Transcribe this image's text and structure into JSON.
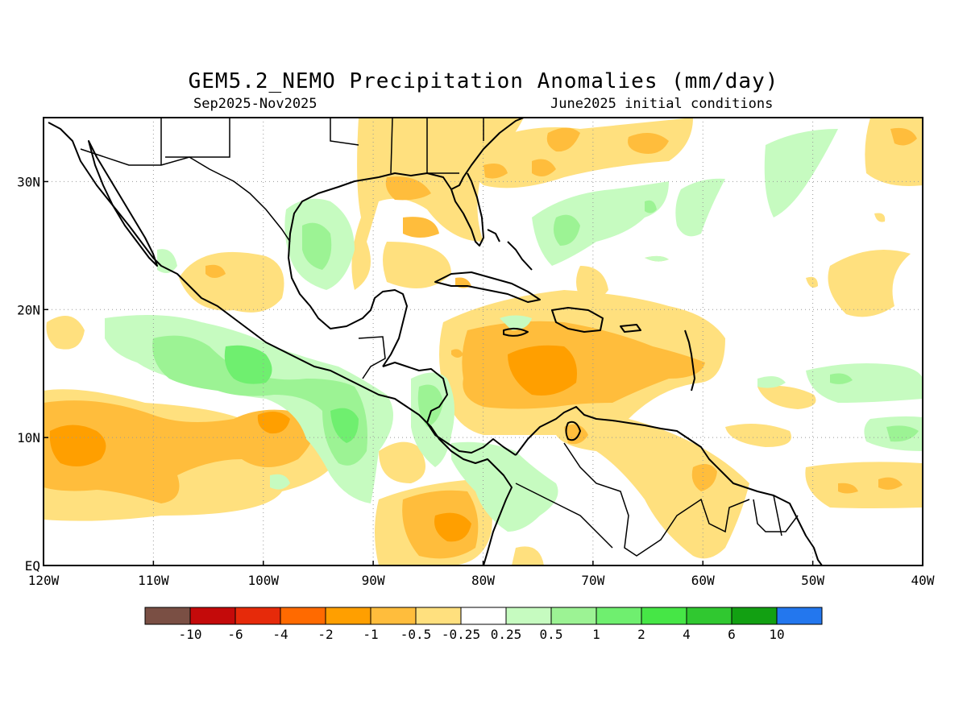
{
  "title": "GEM5.2_NEMO Precipitation Anomalies (mm/day)",
  "subtitle_left": "Sep2025-Nov2025",
  "subtitle_right": "June2025 initial conditions",
  "map": {
    "lon_range": [
      -120,
      -40
    ],
    "lat_range": [
      0,
      35
    ],
    "lon_labels": [
      "120W",
      "110W",
      "100W",
      "90W",
      "80W",
      "70W",
      "60W",
      "50W",
      "40W"
    ],
    "lat_labels": [
      "EQ",
      "10N",
      "20N",
      "30N"
    ],
    "grid": "dotted"
  },
  "colorbar": {
    "colors": [
      "#7a4f44",
      "#c40a0a",
      "#e62a0a",
      "#ff6a00",
      "#ff9f00",
      "#ffbd3c",
      "#ffe07e",
      "#ffffff",
      "#c6fbc0",
      "#9cf394",
      "#6fef6f",
      "#46e646",
      "#30c830",
      "#12a012",
      "#2377ee"
    ],
    "labels": [
      "-10",
      "-6",
      "-4",
      "-2",
      "-1",
      "-0.5",
      "-0.25",
      "0.25",
      "0.5",
      "1",
      "2",
      "4",
      "6",
      "10"
    ]
  }
}
